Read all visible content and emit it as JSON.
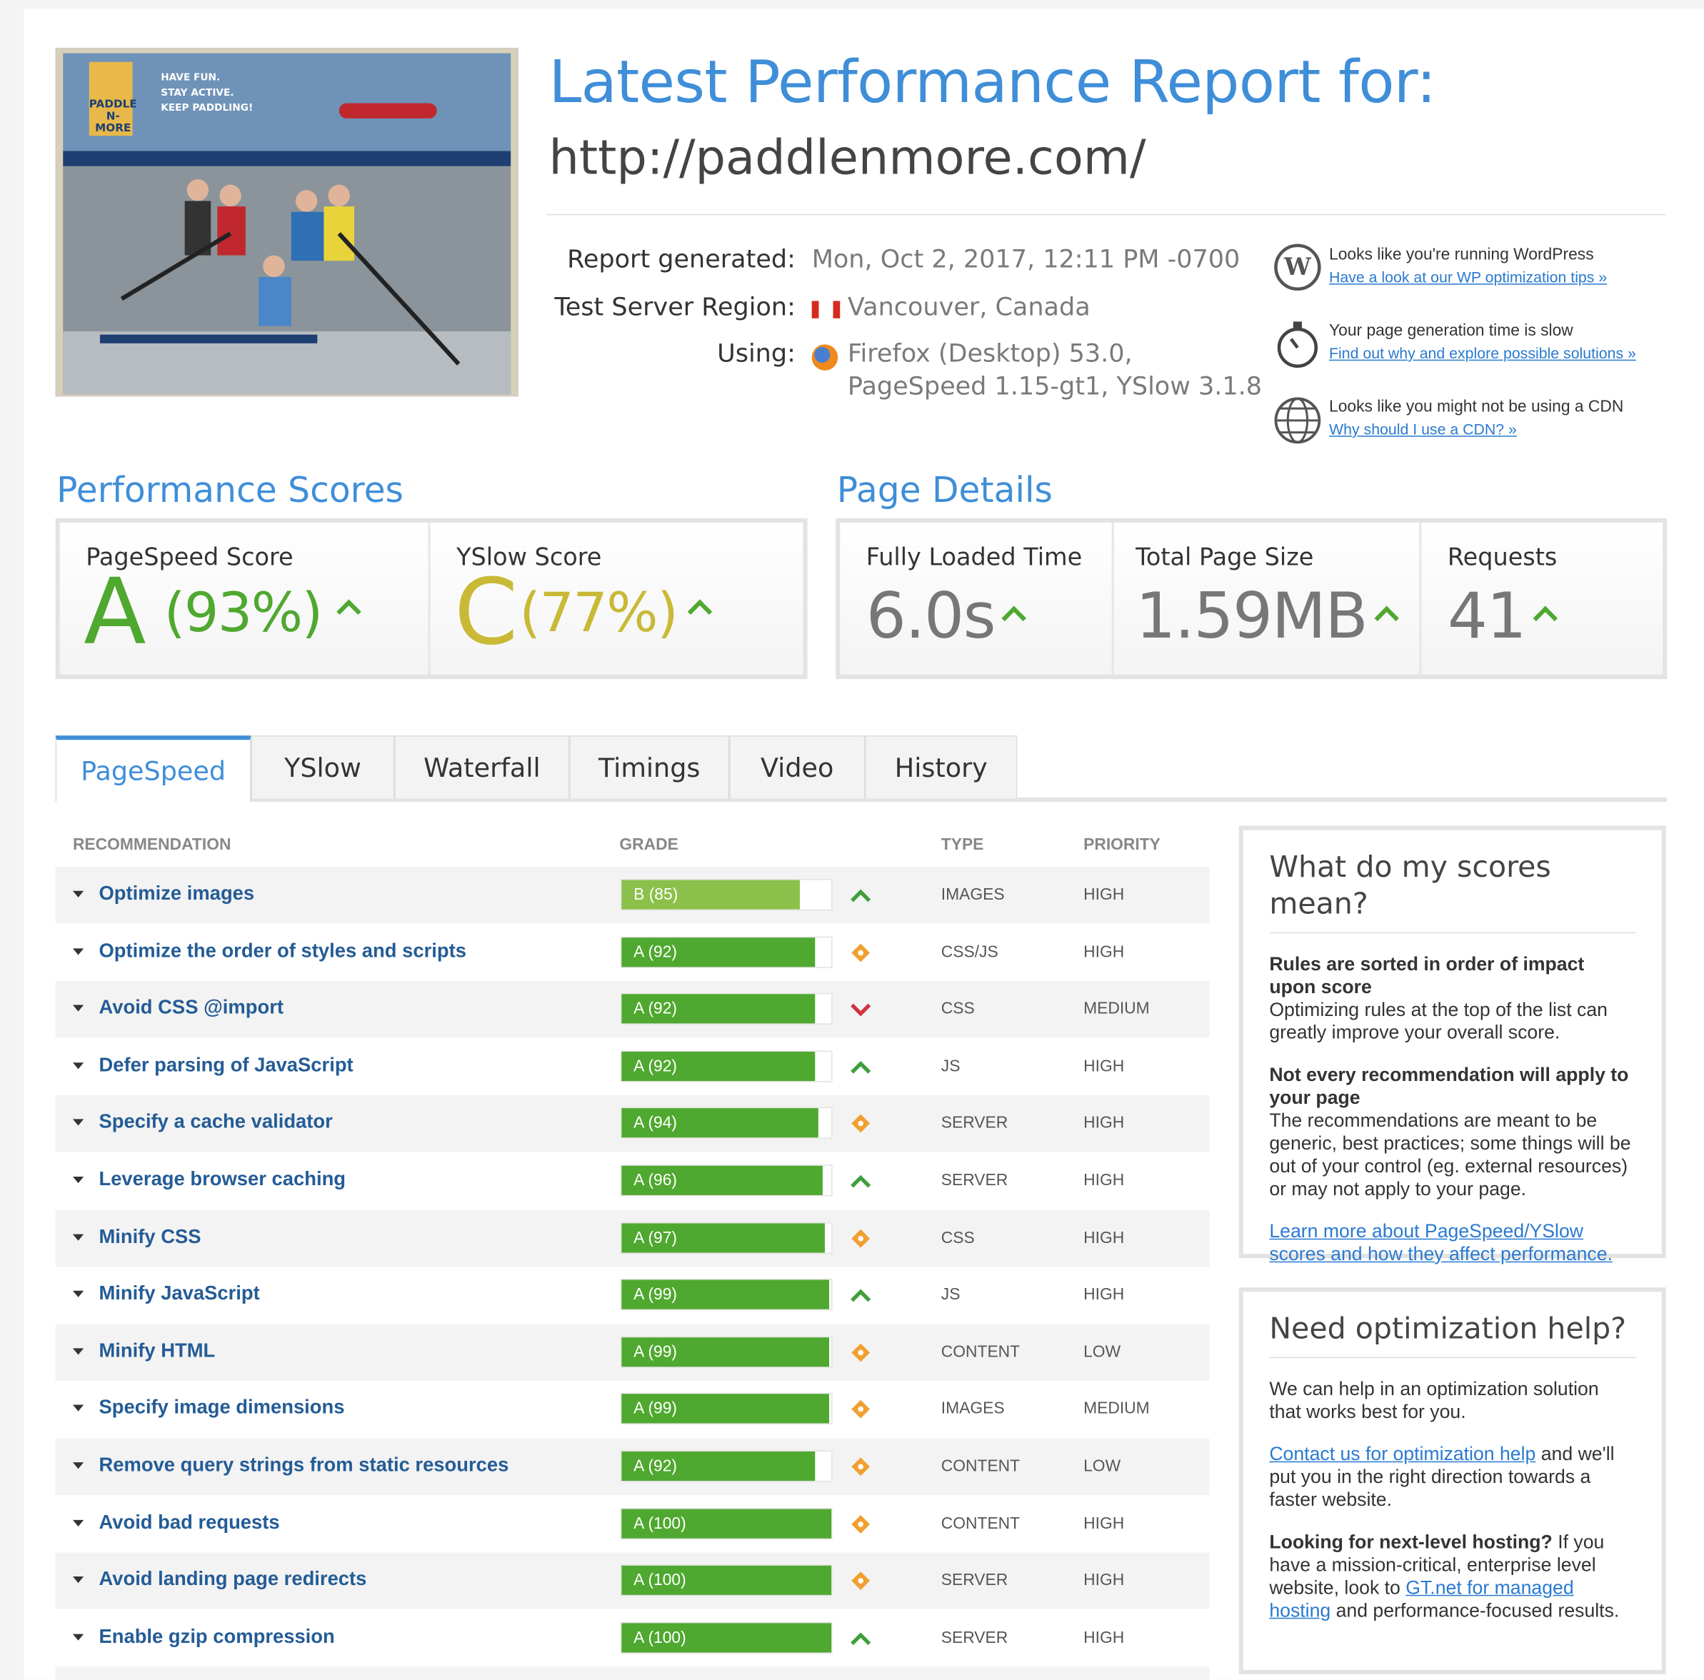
{
  "header": {
    "title": "Latest Performance Report for:",
    "url": "http://paddlenmore.com/"
  },
  "screenshot": {
    "logo": "PADDLE N-MORE",
    "tagline": [
      "HAVE FUN.",
      "STAY ACTIVE.",
      "KEEP PADDLING!"
    ]
  },
  "report_info": [
    {
      "label": "Report generated:",
      "value": [
        "Mon, Oct 2, 2017, 12:11 PM -0700"
      ]
    },
    {
      "label": "Test Server Region:",
      "value": [
        "Vancouver, Canada"
      ]
    },
    {
      "label": "Using:",
      "value": [
        "Firefox (Desktop) 53.0,",
        "PageSpeed 1.15-gt1, YSlow 3.1.8"
      ]
    }
  ],
  "notices": [
    {
      "text": "Looks like you're running WordPress",
      "link": "Have a look at our WP optimization tips »"
    },
    {
      "text": "Your page generation time is slow",
      "link": "Find out why and explore possible solutions »"
    },
    {
      "text": "Looks like you might not be using a CDN",
      "link": "Why should I use a CDN? »"
    }
  ],
  "performance_scores": {
    "title": "Performance Scores",
    "items": [
      {
        "label": "PageSpeed Score",
        "grade": "A",
        "percent": "(93%)",
        "color": "#4fa82f"
      },
      {
        "label": "YSlow Score",
        "grade": "C",
        "percent": "(77%)",
        "color": "#c9b936"
      }
    ]
  },
  "page_details": {
    "title": "Page Details",
    "items": [
      {
        "label": "Fully Loaded Time",
        "value": "6.0s"
      },
      {
        "label": "Total Page Size",
        "value": "1.59MB"
      },
      {
        "label": "Requests",
        "value": "41"
      }
    ]
  },
  "tabs": {
    "items": [
      "PageSpeed",
      "YSlow",
      "Waterfall",
      "Timings",
      "Video",
      "History"
    ],
    "active": 0
  },
  "table": {
    "headers": [
      "RECOMMENDATION",
      "GRADE",
      "TYPE",
      "PRIORITY"
    ],
    "rows": [
      {
        "name": "Optimize images",
        "grade": "B (85)",
        "score": 85,
        "trend": "up",
        "type": "IMAGES",
        "priority": "HIGH"
      },
      {
        "name": "Optimize the order of styles and scripts",
        "grade": "A (92)",
        "score": 92,
        "trend": "flat",
        "type": "CSS/JS",
        "priority": "HIGH"
      },
      {
        "name": "Avoid CSS @import",
        "grade": "A (92)",
        "score": 92,
        "trend": "down",
        "type": "CSS",
        "priority": "MEDIUM"
      },
      {
        "name": "Defer parsing of JavaScript",
        "grade": "A (92)",
        "score": 92,
        "trend": "up",
        "type": "JS",
        "priority": "HIGH"
      },
      {
        "name": "Specify a cache validator",
        "grade": "A (94)",
        "score": 94,
        "trend": "flat",
        "type": "SERVER",
        "priority": "HIGH"
      },
      {
        "name": "Leverage browser caching",
        "grade": "A (96)",
        "score": 96,
        "trend": "up",
        "type": "SERVER",
        "priority": "HIGH"
      },
      {
        "name": "Minify CSS",
        "grade": "A (97)",
        "score": 97,
        "trend": "flat",
        "type": "CSS",
        "priority": "HIGH"
      },
      {
        "name": "Minify JavaScript",
        "grade": "A (99)",
        "score": 99,
        "trend": "up",
        "type": "JS",
        "priority": "HIGH"
      },
      {
        "name": "Minify HTML",
        "grade": "A (99)",
        "score": 99,
        "trend": "flat",
        "type": "CONTENT",
        "priority": "LOW"
      },
      {
        "name": "Specify image dimensions",
        "grade": "A (99)",
        "score": 99,
        "trend": "flat",
        "type": "IMAGES",
        "priority": "MEDIUM"
      },
      {
        "name": "Remove query strings from static resources",
        "grade": "A (92)",
        "score": 92,
        "trend": "flat",
        "type": "CONTENT",
        "priority": "LOW"
      },
      {
        "name": "Avoid bad requests",
        "grade": "A (100)",
        "score": 100,
        "trend": "flat",
        "type": "CONTENT",
        "priority": "HIGH"
      },
      {
        "name": "Avoid landing page redirects",
        "grade": "A (100)",
        "score": 100,
        "trend": "flat",
        "type": "SERVER",
        "priority": "HIGH"
      },
      {
        "name": "Enable gzip compression",
        "grade": "A (100)",
        "score": 100,
        "trend": "up",
        "type": "SERVER",
        "priority": "HIGH"
      }
    ]
  },
  "sidebar": [
    {
      "title": "What do my scores mean?",
      "paragraphs": [
        [
          {
            "text": "Rules are sorted in order of impact upon score",
            "style": "bold"
          },
          {
            "text": "Optimizing rules at the top of the list can greatly improve your overall score.",
            "style": "block"
          }
        ],
        [
          {
            "text": "Not every recommendation will apply to your page",
            "style": "bold"
          },
          {
            "text": "The recommendations are meant to be generic, best practices; some things will be out of your control (eg. external resources) or may not apply to your page.",
            "style": "block"
          }
        ],
        [
          {
            "text": "Learn more about PageSpeed/YSlow scores and how they affect performance.",
            "style": "link"
          }
        ]
      ]
    },
    {
      "title": "Need optimization help?",
      "paragraphs": [
        [
          {
            "text": "We can help in an optimization solution that works best for you.",
            "style": "plain"
          }
        ],
        [
          {
            "text": "Contact us for optimization help",
            "style": "link"
          },
          {
            "text": " and we'll put you in the right direction towards a faster website.",
            "style": "plain"
          }
        ],
        [
          {
            "text": "Looking for next-level hosting?",
            "style": "bold"
          },
          {
            "text": " If you have a mission-critical, enterprise level website, look to ",
            "style": "plain"
          },
          {
            "text": "GT.net for managed hosting",
            "style": "link"
          },
          {
            "text": " and performance-focused results.",
            "style": "plain"
          }
        ]
      ]
    }
  ]
}
